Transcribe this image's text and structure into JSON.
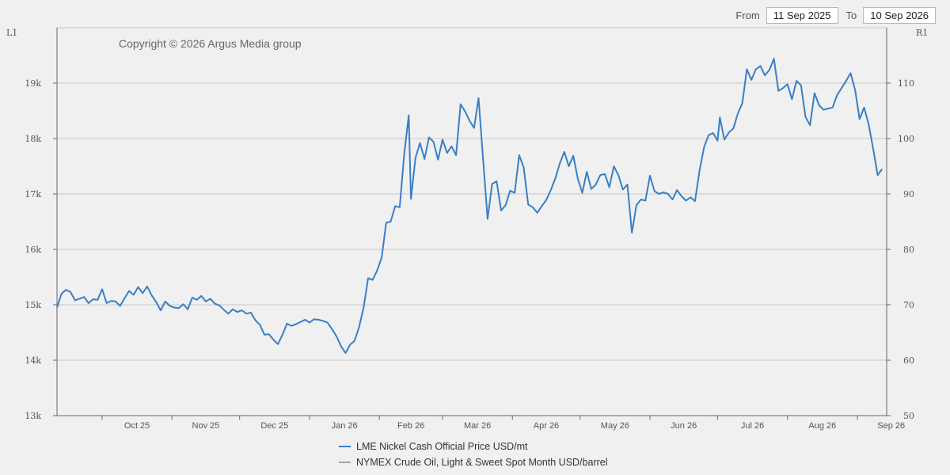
{
  "range": {
    "from_label": "From",
    "from_value": "11 Sep 2025",
    "to_label": "To",
    "to_value": "10 Sep 2026"
  },
  "copyright": "Copyright © 2026 Argus Media group",
  "colors": {
    "nickel": "#3a7fc4",
    "crude": "#a6a6a6",
    "grid": "#c8c8c8",
    "axis": "#666666"
  },
  "chart_data": {
    "type": "line",
    "left_axis": {
      "label": "L1",
      "ticks": [
        "13k",
        "14k",
        "15k",
        "16k",
        "17k",
        "18k",
        "19k"
      ],
      "ylim": [
        13000,
        20000
      ]
    },
    "right_axis": {
      "label": "R1",
      "ticks": [
        "50",
        "60",
        "70",
        "80",
        "90",
        "100",
        "110"
      ],
      "ylim": [
        50,
        120
      ]
    },
    "x_ticks": [
      "Oct 25",
      "Nov 25",
      "Dec 25",
      "Jan 26",
      "Feb 26",
      "Mar 26",
      "Apr 26",
      "May 26",
      "Jun 26",
      "Jul 26",
      "Aug 26",
      "Sep 26"
    ],
    "grid": true,
    "legend_position": "bottom",
    "series": [
      {
        "name": "LME Nickel Cash Official Price USD/mt",
        "axis": "left",
        "points": [
          [
            "2025-09-11",
            14950
          ],
          [
            "2025-09-13",
            15200
          ],
          [
            "2025-09-15",
            15270
          ],
          [
            "2025-09-17",
            15230
          ],
          [
            "2025-09-19",
            15080
          ],
          [
            "2025-09-21",
            15110
          ],
          [
            "2025-09-23",
            15140
          ],
          [
            "2025-09-25",
            15030
          ],
          [
            "2025-09-27",
            15100
          ],
          [
            "2025-09-29",
            15090
          ],
          [
            "2025-10-01",
            15280
          ],
          [
            "2025-10-03",
            15030
          ],
          [
            "2025-10-05",
            15070
          ],
          [
            "2025-10-07",
            15060
          ],
          [
            "2025-10-09",
            14980
          ],
          [
            "2025-10-11",
            15120
          ],
          [
            "2025-10-13",
            15250
          ],
          [
            "2025-10-15",
            15180
          ],
          [
            "2025-10-17",
            15320
          ],
          [
            "2025-10-19",
            15210
          ],
          [
            "2025-10-21",
            15330
          ],
          [
            "2025-10-23",
            15170
          ],
          [
            "2025-10-25",
            15050
          ],
          [
            "2025-10-27",
            14900
          ],
          [
            "2025-10-29",
            15060
          ],
          [
            "2025-10-31",
            14980
          ],
          [
            "2025-11-02",
            14950
          ],
          [
            "2025-11-04",
            14940
          ],
          [
            "2025-11-06",
            15010
          ],
          [
            "2025-11-08",
            14920
          ],
          [
            "2025-11-10",
            15130
          ],
          [
            "2025-11-12",
            15090
          ],
          [
            "2025-11-14",
            15160
          ],
          [
            "2025-11-16",
            15060
          ],
          [
            "2025-11-18",
            15110
          ],
          [
            "2025-11-20",
            15020
          ],
          [
            "2025-11-22",
            14990
          ],
          [
            "2025-11-24",
            14910
          ],
          [
            "2025-11-26",
            14840
          ],
          [
            "2025-11-28",
            14920
          ],
          [
            "2025-11-30",
            14870
          ],
          [
            "2025-12-02",
            14900
          ],
          [
            "2025-12-04",
            14840
          ],
          [
            "2025-12-06",
            14860
          ],
          [
            "2025-12-08",
            14720
          ],
          [
            "2025-12-10",
            14640
          ],
          [
            "2025-12-12",
            14460
          ],
          [
            "2025-12-14",
            14470
          ],
          [
            "2025-12-16",
            14370
          ],
          [
            "2025-12-18",
            14290
          ],
          [
            "2025-12-20",
            14460
          ],
          [
            "2025-12-22",
            14660
          ],
          [
            "2025-12-24",
            14620
          ],
          [
            "2025-12-26",
            14650
          ],
          [
            "2025-12-28",
            14690
          ],
          [
            "2025-12-30",
            14730
          ],
          [
            "2026-01-01",
            14680
          ],
          [
            "2026-01-03",
            14740
          ],
          [
            "2026-01-05",
            14730
          ],
          [
            "2026-01-07",
            14710
          ],
          [
            "2026-01-09",
            14680
          ],
          [
            "2026-01-11",
            14560
          ],
          [
            "2026-01-13",
            14430
          ],
          [
            "2026-01-15",
            14250
          ],
          [
            "2026-01-17",
            14130
          ],
          [
            "2026-01-19",
            14280
          ],
          [
            "2026-01-21",
            14350
          ],
          [
            "2026-01-23",
            14600
          ],
          [
            "2026-01-25",
            14950
          ],
          [
            "2026-01-27",
            15480
          ],
          [
            "2026-01-29",
            15450
          ],
          [
            "2026-01-31",
            15620
          ],
          [
            "2026-02-02",
            15850
          ],
          [
            "2026-02-04",
            16480
          ],
          [
            "2026-02-06",
            16500
          ],
          [
            "2026-02-08",
            16780
          ],
          [
            "2026-02-10",
            16760
          ],
          [
            "2026-02-12",
            17720
          ],
          [
            "2026-02-14",
            18420
          ],
          [
            "2026-02-15",
            16910
          ],
          [
            "2026-02-17",
            17650
          ],
          [
            "2026-02-19",
            17920
          ],
          [
            "2026-02-21",
            17630
          ],
          [
            "2026-02-23",
            18020
          ],
          [
            "2026-02-25",
            17940
          ],
          [
            "2026-02-27",
            17620
          ],
          [
            "2026-03-01",
            17980
          ],
          [
            "2026-03-03",
            17740
          ],
          [
            "2026-03-05",
            17860
          ],
          [
            "2026-03-07",
            17700
          ],
          [
            "2026-03-09",
            18620
          ],
          [
            "2026-03-11",
            18490
          ],
          [
            "2026-03-13",
            18320
          ],
          [
            "2026-03-15",
            18190
          ],
          [
            "2026-03-17",
            18730
          ],
          [
            "2026-03-19",
            17630
          ],
          [
            "2026-03-21",
            16550
          ],
          [
            "2026-03-23",
            17180
          ],
          [
            "2026-03-25",
            17230
          ],
          [
            "2026-03-27",
            16700
          ],
          [
            "2026-03-29",
            16800
          ],
          [
            "2026-03-31",
            17060
          ],
          [
            "2026-04-02",
            17020
          ],
          [
            "2026-04-04",
            17700
          ],
          [
            "2026-04-06",
            17480
          ],
          [
            "2026-04-08",
            16810
          ],
          [
            "2026-04-10",
            16760
          ],
          [
            "2026-04-12",
            16660
          ],
          [
            "2026-04-14",
            16780
          ],
          [
            "2026-04-16",
            16890
          ],
          [
            "2026-04-18",
            17070
          ],
          [
            "2026-04-20",
            17280
          ],
          [
            "2026-04-22",
            17550
          ],
          [
            "2026-04-24",
            17760
          ],
          [
            "2026-04-26",
            17500
          ],
          [
            "2026-04-28",
            17690
          ],
          [
            "2026-04-30",
            17280
          ],
          [
            "2026-05-02",
            17020
          ],
          [
            "2026-05-04",
            17400
          ],
          [
            "2026-05-06",
            17090
          ],
          [
            "2026-05-08",
            17170
          ],
          [
            "2026-05-10",
            17340
          ],
          [
            "2026-05-12",
            17360
          ],
          [
            "2026-05-14",
            17120
          ],
          [
            "2026-05-16",
            17500
          ],
          [
            "2026-05-18",
            17340
          ],
          [
            "2026-05-20",
            17080
          ],
          [
            "2026-05-22",
            17170
          ],
          [
            "2026-05-24",
            16300
          ],
          [
            "2026-05-26",
            16800
          ],
          [
            "2026-05-28",
            16900
          ],
          [
            "2026-05-30",
            16880
          ],
          [
            "2026-06-01",
            17330
          ],
          [
            "2026-06-03",
            17050
          ],
          [
            "2026-06-05",
            17000
          ],
          [
            "2026-06-07",
            17030
          ],
          [
            "2026-06-09",
            17000
          ],
          [
            "2026-06-11",
            16900
          ],
          [
            "2026-06-13",
            17070
          ],
          [
            "2026-06-15",
            16960
          ],
          [
            "2026-06-17",
            16880
          ],
          [
            "2026-06-19",
            16940
          ],
          [
            "2026-06-21",
            16870
          ],
          [
            "2026-06-23",
            17420
          ],
          [
            "2026-06-25",
            17840
          ],
          [
            "2026-06-27",
            18060
          ],
          [
            "2026-06-29",
            18100
          ],
          [
            "2026-07-01",
            17960
          ],
          [
            "2026-07-02",
            18380
          ],
          [
            "2026-07-04",
            17980
          ],
          [
            "2026-07-06",
            18110
          ],
          [
            "2026-07-08",
            18180
          ],
          [
            "2026-07-10",
            18450
          ],
          [
            "2026-07-12",
            18640
          ],
          [
            "2026-07-14",
            19250
          ],
          [
            "2026-07-16",
            19060
          ],
          [
            "2026-07-18",
            19250
          ],
          [
            "2026-07-20",
            19310
          ],
          [
            "2026-07-22",
            19140
          ],
          [
            "2026-07-24",
            19240
          ],
          [
            "2026-07-26",
            19440
          ],
          [
            "2026-07-28",
            18860
          ],
          [
            "2026-07-30",
            18910
          ],
          [
            "2026-08-01",
            18980
          ],
          [
            "2026-08-03",
            18710
          ],
          [
            "2026-08-05",
            19040
          ],
          [
            "2026-08-07",
            18960
          ],
          [
            "2026-08-09",
            18390
          ],
          [
            "2026-08-11",
            18240
          ],
          [
            "2026-08-13",
            18820
          ],
          [
            "2026-08-15",
            18600
          ],
          [
            "2026-08-17",
            18520
          ],
          [
            "2026-08-19",
            18540
          ],
          [
            "2026-08-21",
            18560
          ],
          [
            "2026-08-23",
            18780
          ],
          [
            "2026-08-25",
            18910
          ],
          [
            "2026-08-27",
            19040
          ],
          [
            "2026-08-29",
            19180
          ],
          [
            "2026-08-31",
            18880
          ],
          [
            "2026-09-02",
            18350
          ],
          [
            "2026-09-04",
            18560
          ],
          [
            "2026-09-06",
            18260
          ],
          [
            "2026-09-08",
            17820
          ],
          [
            "2026-09-10",
            17340
          ],
          [
            "2026-09-12",
            17450
          ]
        ]
      },
      {
        "name": "NYMEX Crude Oil, Light & Sweet Spot Month USD/barrel",
        "axis": "right",
        "points": []
      }
    ]
  }
}
